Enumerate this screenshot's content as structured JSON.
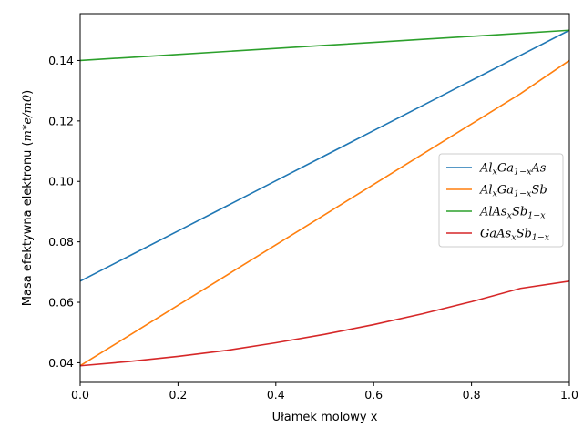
{
  "chart_data": {
    "type": "line",
    "title": "",
    "xlabel": "Ułamek molowy x",
    "ylabel": "Masa efektywna elektronu (m*e/m0)",
    "xlim": [
      0.0,
      1.0
    ],
    "ylim": [
      0.0335,
      0.1555
    ],
    "xticks": [
      0.0,
      0.2,
      0.4,
      0.6,
      0.8,
      1.0
    ],
    "xtick_labels": [
      "0.0",
      "0.2",
      "0.4",
      "0.6",
      "0.8",
      "1.0"
    ],
    "yticks": [
      0.04,
      0.06,
      0.08,
      0.1,
      0.12,
      0.14
    ],
    "ytick_labels": [
      "0.04",
      "0.06",
      "0.08",
      "0.10",
      "0.12",
      "0.14"
    ],
    "grid": false,
    "legend_position": "center-right",
    "x": [
      0.0,
      0.1,
      0.2,
      0.3,
      0.4,
      0.5,
      0.6,
      0.7,
      0.8,
      0.9,
      1.0
    ],
    "series": [
      {
        "name": "AlxGa1-xAs",
        "legend": {
          "a": "Al",
          "s1": "x",
          "b": "Ga",
          "s2": "1−x",
          "c": "As",
          "d": "",
          "s3": ""
        },
        "color": "#1f77b4",
        "values": [
          0.067,
          0.0753,
          0.0836,
          0.0919,
          0.1002,
          0.1085,
          0.1168,
          0.1251,
          0.1334,
          0.1417,
          0.15
        ]
      },
      {
        "name": "AlxGa1-xSb",
        "legend": {
          "a": "Al",
          "s1": "x",
          "b": "Ga",
          "s2": "1−x",
          "c": "Sb",
          "d": "",
          "s3": ""
        },
        "color": "#ff7f0e",
        "values": [
          0.039,
          0.049,
          0.059,
          0.069,
          0.079,
          0.089,
          0.099,
          0.109,
          0.119,
          0.129,
          0.14
        ]
      },
      {
        "name": "AlAsxSb1-x",
        "legend": {
          "a": "AlAs",
          "s1": "x",
          "b": "Sb",
          "s2": "1−x",
          "c": "",
          "d": "",
          "s3": ""
        },
        "color": "#2ca02c",
        "values": [
          0.14,
          0.141,
          0.142,
          0.143,
          0.144,
          0.145,
          0.146,
          0.147,
          0.148,
          0.149,
          0.15
        ]
      },
      {
        "name": "GaAsxSb1-x",
        "legend": {
          "a": "GaAs",
          "s1": "x",
          "b": "Sb",
          "s2": "1−x",
          "c": "",
          "d": "",
          "s3": ""
        },
        "color": "#d62728",
        "values": [
          0.039,
          0.0404,
          0.0421,
          0.0441,
          0.0466,
          0.0494,
          0.0526,
          0.0562,
          0.0602,
          0.0646,
          0.067
        ]
      }
    ]
  }
}
